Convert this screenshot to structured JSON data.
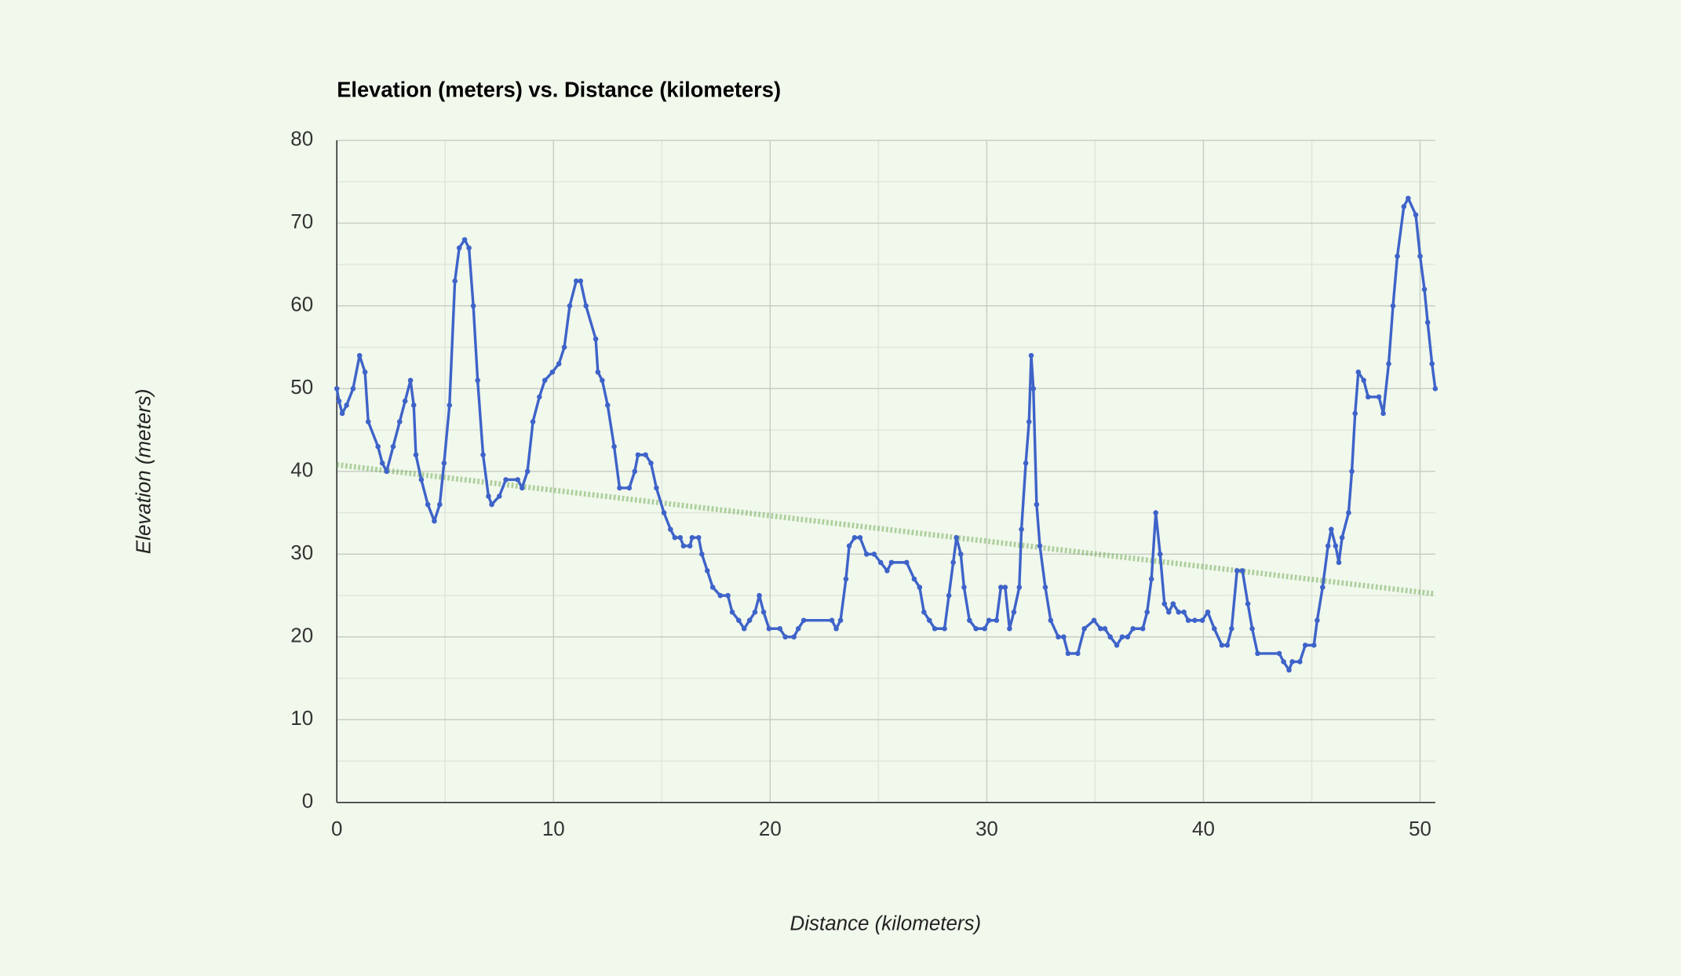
{
  "chart_data": {
    "type": "line",
    "title": "Elevation (meters) vs. Distance (kilometers)",
    "xlabel": "Distance (kilometers)",
    "ylabel": "Elevation (meters)",
    "xlim": [
      0,
      50.7
    ],
    "xticks": [
      0,
      10,
      20,
      30,
      40,
      50
    ],
    "ylim": [
      0,
      80
    ],
    "yticks": [
      0,
      10,
      20,
      30,
      40,
      50,
      60,
      70,
      80
    ],
    "grid": true,
    "x": [
      0,
      0.1,
      0.25,
      0.45,
      0.75,
      1.05,
      1.3,
      1.45,
      1.9,
      2.1,
      2.3,
      2.6,
      2.9,
      3.15,
      3.4,
      3.55,
      3.65,
      3.9,
      4.2,
      4.5,
      4.75,
      4.95,
      5.2,
      5.45,
      5.65,
      5.9,
      6.1,
      6.3,
      6.5,
      6.75,
      7.0,
      7.15,
      7.5,
      7.8,
      8.35,
      8.55,
      8.8,
      9.05,
      9.35,
      9.6,
      9.95,
      10.25,
      10.5,
      10.75,
      11.05,
      11.25,
      11.5,
      11.95,
      12.05,
      12.25,
      12.5,
      12.8,
      13.05,
      13.5,
      13.75,
      13.9,
      14.25,
      14.5,
      14.75,
      15.1,
      15.4,
      15.6,
      15.85,
      16,
      16.3,
      16.4,
      16.7,
      16.85,
      17.1,
      17.35,
      17.7,
      18.05,
      18.25,
      18.55,
      18.8,
      19.05,
      19.3,
      19.5,
      19.7,
      19.95,
      20.45,
      20.7,
      21.1,
      21.3,
      21.55,
      22.85,
      23.05,
      23.25,
      23.5,
      23.65,
      23.9,
      24.15,
      24.45,
      24.8,
      25.1,
      25.4,
      25.6,
      26.3,
      26.65,
      26.9,
      27.1,
      27.35,
      27.6,
      28.05,
      28.25,
      28.45,
      28.6,
      28.8,
      28.95,
      29.2,
      29.5,
      29.9,
      30.1,
      30.45,
      30.65,
      30.85,
      31.05,
      31.25,
      31.5,
      31.6,
      31.8,
      31.95,
      32.05,
      32.15,
      32.3,
      32.45,
      32.7,
      32.95,
      33.3,
      33.55,
      33.75,
      34.2,
      34.5,
      34.95,
      35.25,
      35.45,
      35.7,
      36.0,
      36.25,
      36.5,
      36.75,
      37.2,
      37.4,
      37.6,
      37.8,
      38,
      38.2,
      38.4,
      38.6,
      38.85,
      39.1,
      39.3,
      39.6,
      39.95,
      40.2,
      40.5,
      40.85,
      41.1,
      41.3,
      41.55,
      41.8,
      42.05,
      42.25,
      42.5,
      43.5,
      43.7,
      43.95,
      44.1,
      44.45,
      44.7,
      45.1,
      45.25,
      45.5,
      45.75,
      45.9,
      46.1,
      46.25,
      46.4,
      46.7,
      46.85,
      47.0,
      47.15,
      47.4,
      47.6,
      48.1,
      48.3,
      48.55,
      48.75,
      48.95,
      49.25,
      49.45,
      49.8,
      50,
      50.2,
      50.35,
      50.55,
      50.7
    ],
    "series": [
      {
        "color": "#3e63c9",
        "values": [
          50,
          48.5,
          47,
          48,
          50,
          54,
          52,
          46,
          43,
          41,
          40,
          43,
          46,
          48.5,
          51,
          48,
          42,
          39,
          36,
          34,
          36,
          41,
          48,
          63,
          67,
          68,
          67,
          60,
          51,
          42,
          37,
          36,
          37,
          39,
          39,
          38,
          40,
          46,
          49,
          51,
          52,
          53,
          55,
          60,
          63,
          63,
          60,
          56,
          52,
          51,
          48,
          43,
          38,
          38,
          40,
          42,
          42,
          41,
          38,
          35,
          33,
          32,
          32,
          31,
          31,
          32,
          32,
          30,
          28,
          26,
          25,
          25,
          23,
          22,
          21,
          22,
          23,
          25,
          23,
          21,
          21,
          20,
          20,
          21,
          22,
          22,
          21,
          22,
          27,
          31,
          32,
          32,
          30,
          30,
          29,
          28,
          29,
          29,
          27,
          26,
          23,
          22,
          21,
          21,
          25,
          29,
          32,
          30,
          26,
          22,
          21,
          21,
          22,
          22,
          26,
          26,
          21,
          23,
          26,
          33,
          41,
          46,
          54,
          50,
          36,
          31,
          26,
          22,
          20,
          20,
          18,
          18,
          21,
          22,
          21,
          21,
          20,
          19,
          20,
          20,
          21,
          21,
          23,
          27,
          35,
          30,
          24,
          23,
          24,
          23,
          23,
          22,
          22,
          22,
          23,
          21,
          19,
          19,
          21,
          28,
          28,
          24,
          21,
          18,
          18,
          17,
          16,
          17,
          17,
          19,
          19,
          22,
          26,
          31,
          33,
          31,
          29,
          32,
          35,
          40,
          47,
          52,
          51,
          49,
          49,
          47,
          53,
          60,
          66,
          72,
          73,
          71,
          66,
          62,
          58,
          53,
          50
        ]
      }
    ],
    "trendline": {
      "x": [
        0,
        50.7
      ],
      "values": [
        40.8,
        25.2
      ],
      "color": "#5a9e3c"
    }
  }
}
